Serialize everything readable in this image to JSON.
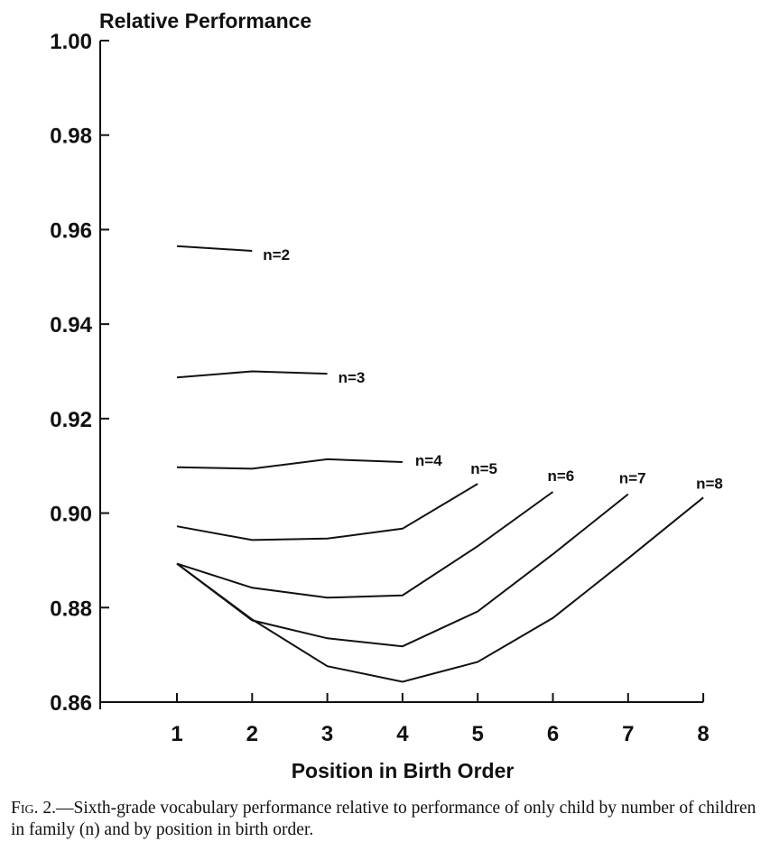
{
  "chart_data": {
    "type": "line",
    "ylabel": "Relative Performance",
    "xlabel": "Position in Birth Order",
    "ylim": [
      0.86,
      1.0
    ],
    "xlim": [
      1,
      8
    ],
    "y_ticks": [
      "1.00",
      "0.98",
      "0.96",
      "0.94",
      "0.92",
      "0.90",
      "0.88",
      "0.86"
    ],
    "x_ticks": [
      "1",
      "2",
      "3",
      "4",
      "5",
      "6",
      "7",
      "8"
    ],
    "grid": false,
    "legend": "labels at line ends",
    "series": [
      {
        "name": "n=2",
        "x": [
          1,
          2
        ],
        "values": [
          0.9565,
          0.9555
        ]
      },
      {
        "name": "n=3",
        "x": [
          1,
          2,
          3
        ],
        "values": [
          0.9287,
          0.93,
          0.9295
        ]
      },
      {
        "name": "n=4",
        "x": [
          1,
          2,
          3,
          4
        ],
        "values": [
          0.9097,
          0.9094,
          0.9114,
          0.9108
        ]
      },
      {
        "name": "n=5",
        "x": [
          1,
          2,
          3,
          4,
          5
        ],
        "values": [
          0.8972,
          0.8943,
          0.8946,
          0.8967,
          0.9062
        ]
      },
      {
        "name": "n=6",
        "x": [
          1,
          2,
          3,
          4,
          5,
          6
        ],
        "values": [
          0.8893,
          0.8842,
          0.8821,
          0.8826,
          0.893,
          0.9045
        ]
      },
      {
        "name": "n=7",
        "x": [
          1,
          2,
          3,
          4,
          5,
          6,
          7
        ],
        "values": [
          0.8893,
          0.8773,
          0.8735,
          0.8718,
          0.8792,
          0.8913,
          0.904
        ]
      },
      {
        "name": "n=8",
        "x": [
          1,
          2,
          3,
          4,
          5,
          6,
          7,
          8
        ],
        "values": [
          0.8893,
          0.8775,
          0.8676,
          0.8643,
          0.8685,
          0.8778,
          0.8904,
          0.9033
        ]
      }
    ]
  },
  "caption": {
    "lead": "Fig. 2.",
    "text": "—Sixth-grade vocabulary performance relative to performance of only child by number of children in family (n) and by position in birth order."
  }
}
